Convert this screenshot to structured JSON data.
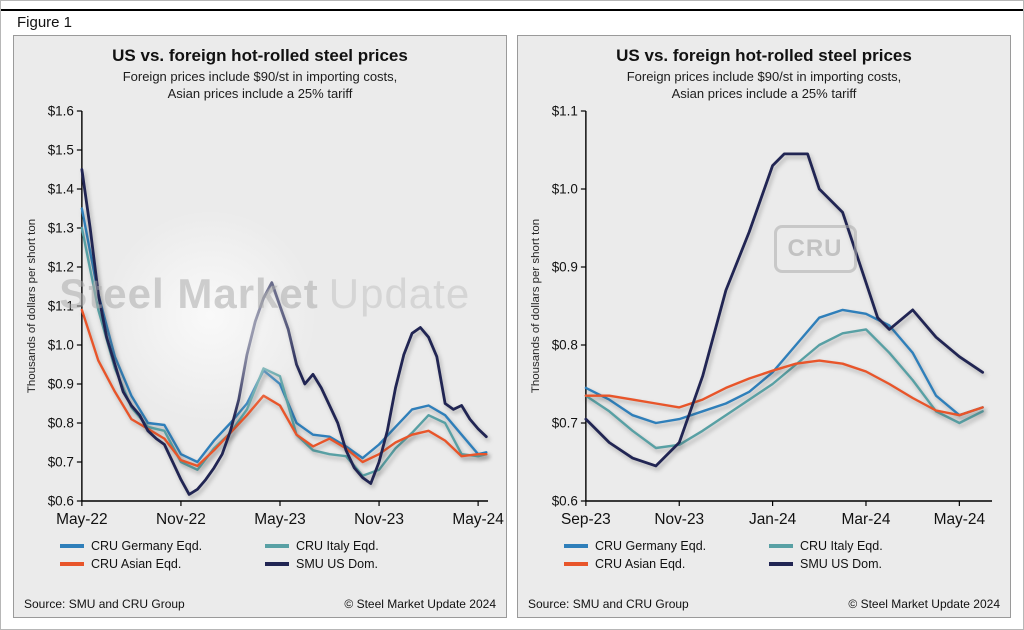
{
  "figure_label": "Figure 1",
  "footer": {
    "source": "Source: SMU and CRU Group",
    "copyright": "© Steel Market Update 2024"
  },
  "chart_data": [
    {
      "type": "line",
      "title": "US vs. foreign hot-rolled steel prices",
      "subtitle_line1": "Foreign prices include $90/st in importing costs,",
      "subtitle_line2": "Asian prices include a 25% tariff",
      "ylabel": "Thousands of dollars per short ton",
      "grid": false,
      "legend_position": "bottom",
      "ylim": [
        0.6,
        1.6
      ],
      "ytick_values": [
        0.6,
        0.7,
        0.8,
        0.9,
        1.0,
        1.1,
        1.2,
        1.3,
        1.4,
        1.5,
        1.6
      ],
      "ytick_labels": [
        "$0.6",
        "$0.7",
        "$0.8",
        "$0.9",
        "$1.0",
        "$1.1",
        "$1.2",
        "$1.3",
        "$1.4",
        "$1.5",
        "$1.6"
      ],
      "xlim": [
        0,
        24.6
      ],
      "xtick_values": [
        0,
        6,
        12,
        18,
        24
      ],
      "xtick_labels": [
        "May-22",
        "Nov-22",
        "May-23",
        "Nov-23",
        "May-24"
      ],
      "watermark": {
        "bold": "Steel Market",
        "light": "Update"
      },
      "series": [
        {
          "name": "CRU Germany Eqd.",
          "color": "#2f7fba",
          "width": 2.4,
          "x": [
            0,
            1,
            2,
            3,
            4,
            5,
            6,
            7,
            8,
            9,
            10,
            11,
            12,
            13,
            14,
            15,
            16,
            17,
            18,
            19,
            20,
            21,
            22,
            23,
            24,
            24.5
          ],
          "y": [
            1.35,
            1.13,
            0.97,
            0.87,
            0.8,
            0.795,
            0.72,
            0.7,
            0.755,
            0.8,
            0.85,
            0.935,
            0.9,
            0.8,
            0.77,
            0.765,
            0.74,
            0.71,
            0.745,
            0.79,
            0.835,
            0.845,
            0.82,
            0.77,
            0.72,
            0.725
          ]
        },
        {
          "name": "CRU Italy Eqd.",
          "color": "#58a0a4",
          "width": 2.4,
          "x": [
            0,
            1,
            2,
            3,
            4,
            5,
            6,
            7,
            8,
            9,
            10,
            11,
            12,
            13,
            14,
            15,
            16,
            17,
            18,
            19,
            20,
            21,
            22,
            23,
            24,
            24.5
          ],
          "y": [
            1.3,
            1.09,
            0.94,
            0.84,
            0.79,
            0.78,
            0.7,
            0.68,
            0.735,
            0.775,
            0.835,
            0.94,
            0.92,
            0.77,
            0.73,
            0.72,
            0.715,
            0.665,
            0.68,
            0.735,
            0.775,
            0.82,
            0.8,
            0.72,
            0.715,
            0.72
          ]
        },
        {
          "name": "CRU Asian Eqd.",
          "color": "#e8552a",
          "width": 2.4,
          "x": [
            0,
            1,
            2,
            3,
            4,
            5,
            6,
            7,
            8,
            9,
            10,
            11,
            12,
            13,
            14,
            15,
            16,
            17,
            18,
            19,
            20,
            21,
            22,
            23,
            24,
            24.5
          ],
          "y": [
            1.09,
            0.96,
            0.88,
            0.81,
            0.785,
            0.76,
            0.705,
            0.69,
            0.73,
            0.775,
            0.82,
            0.87,
            0.845,
            0.77,
            0.74,
            0.76,
            0.735,
            0.7,
            0.72,
            0.75,
            0.77,
            0.78,
            0.755,
            0.715,
            0.72,
            0.72
          ]
        },
        {
          "name": "SMU US Dom.",
          "color": "#212553",
          "width": 2.8,
          "x": [
            0,
            0.5,
            1,
            1.5,
            2,
            2.5,
            3,
            3.5,
            4,
            4.5,
            5,
            5.5,
            6,
            6.5,
            7,
            7.5,
            8,
            8.5,
            9,
            9.5,
            10,
            10.5,
            11,
            11.5,
            12,
            12.5,
            13,
            13.5,
            14,
            14.5,
            15,
            15.5,
            16,
            16.5,
            17,
            17.5,
            18,
            18.5,
            19,
            19.5,
            20,
            20.5,
            21,
            21.5,
            22,
            22.5,
            23,
            23.5,
            24,
            24.5
          ],
          "y": [
            1.45,
            1.3,
            1.13,
            1.02,
            0.95,
            0.88,
            0.845,
            0.82,
            0.78,
            0.76,
            0.745,
            0.7,
            0.655,
            0.617,
            0.63,
            0.655,
            0.685,
            0.72,
            0.78,
            0.86,
            0.975,
            1.06,
            1.12,
            1.16,
            1.1,
            1.04,
            0.95,
            0.9,
            0.925,
            0.89,
            0.845,
            0.8,
            0.73,
            0.685,
            0.66,
            0.645,
            0.7,
            0.78,
            0.89,
            0.975,
            1.03,
            1.045,
            1.02,
            0.97,
            0.85,
            0.835,
            0.845,
            0.81,
            0.785,
            0.765
          ]
        }
      ]
    },
    {
      "type": "line",
      "title": "US vs. foreign hot-rolled steel prices",
      "subtitle_line1": "Foreign prices include $90/st in importing costs,",
      "subtitle_line2": "Asian prices include a 25% tariff",
      "ylabel": "Thousands of dollars per short ton",
      "grid": false,
      "legend_position": "bottom",
      "ylim": [
        0.6,
        1.1
      ],
      "ytick_values": [
        0.6,
        0.7,
        0.8,
        0.9,
        1.0,
        1.1
      ],
      "ytick_labels": [
        "$0.6",
        "$0.7",
        "$0.8",
        "$0.9",
        "$1.0",
        "$1.1"
      ],
      "xlim": [
        0,
        8.7
      ],
      "xtick_values": [
        0,
        2,
        4,
        6,
        8
      ],
      "xtick_labels": [
        "Sep-23",
        "Nov-23",
        "Jan-24",
        "Mar-24",
        "May-24"
      ],
      "watermark": {
        "logo": "CRU"
      },
      "series": [
        {
          "name": "CRU Germany Eqd.",
          "color": "#2f7fba",
          "width": 2.4,
          "x": [
            0,
            0.5,
            1,
            1.5,
            2,
            2.5,
            3,
            3.5,
            4,
            4.5,
            5,
            5.5,
            6,
            6.5,
            7,
            7.5,
            8,
            8.5
          ],
          "y": [
            0.745,
            0.73,
            0.71,
            0.7,
            0.705,
            0.715,
            0.725,
            0.74,
            0.765,
            0.8,
            0.835,
            0.845,
            0.84,
            0.825,
            0.79,
            0.735,
            0.71,
            0.72
          ]
        },
        {
          "name": "CRU Italy Eqd.",
          "color": "#58a0a4",
          "width": 2.4,
          "x": [
            0,
            0.5,
            1,
            1.5,
            2,
            2.5,
            3,
            3.5,
            4,
            4.5,
            5,
            5.5,
            6,
            6.5,
            7,
            7.5,
            8,
            8.5
          ],
          "y": [
            0.735,
            0.715,
            0.69,
            0.668,
            0.672,
            0.69,
            0.71,
            0.73,
            0.75,
            0.775,
            0.8,
            0.815,
            0.82,
            0.79,
            0.755,
            0.715,
            0.7,
            0.715
          ]
        },
        {
          "name": "CRU Asian Eqd.",
          "color": "#e8552a",
          "width": 2.4,
          "x": [
            0,
            0.5,
            1,
            1.5,
            2,
            2.5,
            3,
            3.5,
            4,
            4.5,
            5,
            5.5,
            6,
            6.5,
            7,
            7.5,
            8,
            8.5
          ],
          "y": [
            0.735,
            0.735,
            0.73,
            0.725,
            0.72,
            0.73,
            0.745,
            0.757,
            0.767,
            0.776,
            0.78,
            0.776,
            0.766,
            0.75,
            0.732,
            0.716,
            0.71,
            0.72
          ]
        },
        {
          "name": "SMU US Dom.",
          "color": "#212553",
          "width": 2.8,
          "x": [
            0,
            0.5,
            1,
            1.5,
            2,
            2.5,
            3,
            3.5,
            4,
            4.25,
            4.75,
            5,
            5.5,
            6,
            6.25,
            6.5,
            7,
            7.5,
            8,
            8.5
          ],
          "y": [
            0.705,
            0.675,
            0.655,
            0.645,
            0.675,
            0.76,
            0.87,
            0.945,
            1.03,
            1.045,
            1.045,
            1.0,
            0.97,
            0.88,
            0.835,
            0.82,
            0.845,
            0.81,
            0.785,
            0.765
          ]
        }
      ]
    }
  ]
}
